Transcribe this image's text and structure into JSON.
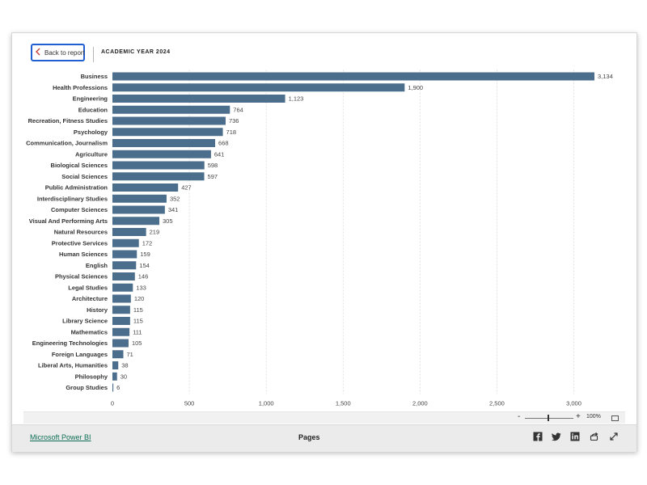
{
  "header": {
    "back_label": "Back to report",
    "page_title": "ACADEMIC YEAR 2024"
  },
  "footer": {
    "brand_link": "Microsoft Power BI",
    "pages_label": "Pages",
    "zoom_minus": "-",
    "zoom_plus": "+",
    "zoom_level": "100%"
  },
  "colors": {
    "bar": "#4a6e8c",
    "accent": "#1f5fd1",
    "link": "#0f6e55"
  },
  "icons": [
    "chevron-left-icon",
    "facebook-icon",
    "twitter-icon",
    "linkedin-icon",
    "share-icon",
    "expand-icon",
    "fit-to-page-icon"
  ],
  "chart_data": {
    "type": "bar",
    "orientation": "horizontal",
    "categories": [
      "Business",
      "Health Professions",
      "Engineering",
      "Education",
      "Recreation, Fitness Studies",
      "Psychology",
      "Communication, Journalism",
      "Agriculture",
      "Biological Sciences",
      "Social Sciences",
      "Public Administration",
      "Interdisciplinary Studies",
      "Computer Sciences",
      "Visual And Performing Arts",
      "Natural Resources",
      "Protective Services",
      "Human Sciences",
      "English",
      "Physical Sciences",
      "Legal Studies",
      "Architecture",
      "History",
      "Library Science",
      "Mathematics",
      "Engineering Technologies",
      "Foreign Languages",
      "Liberal Arts, Humanities",
      "Philosophy",
      "Group Studies"
    ],
    "values": [
      3134,
      1900,
      1123,
      764,
      736,
      718,
      668,
      641,
      598,
      597,
      427,
      352,
      341,
      305,
      219,
      172,
      159,
      154,
      146,
      133,
      120,
      115,
      115,
      111,
      105,
      71,
      38,
      30,
      6
    ],
    "value_labels": [
      "3,134",
      "1,900",
      "1,123",
      "764",
      "736",
      "718",
      "668",
      "641",
      "598",
      "597",
      "427",
      "352",
      "341",
      "305",
      "219",
      "172",
      "159",
      "154",
      "146",
      "133",
      "120",
      "115",
      "115",
      "111",
      "105",
      "71",
      "38",
      "30",
      "6"
    ],
    "x_ticks": [
      0,
      500,
      1000,
      1500,
      2000,
      2500,
      3000
    ],
    "x_tick_labels": [
      "0",
      "500",
      "1,000",
      "1,500",
      "2,000",
      "2,500",
      "3,000"
    ],
    "xlim": [
      0,
      3134
    ],
    "grid": true
  }
}
